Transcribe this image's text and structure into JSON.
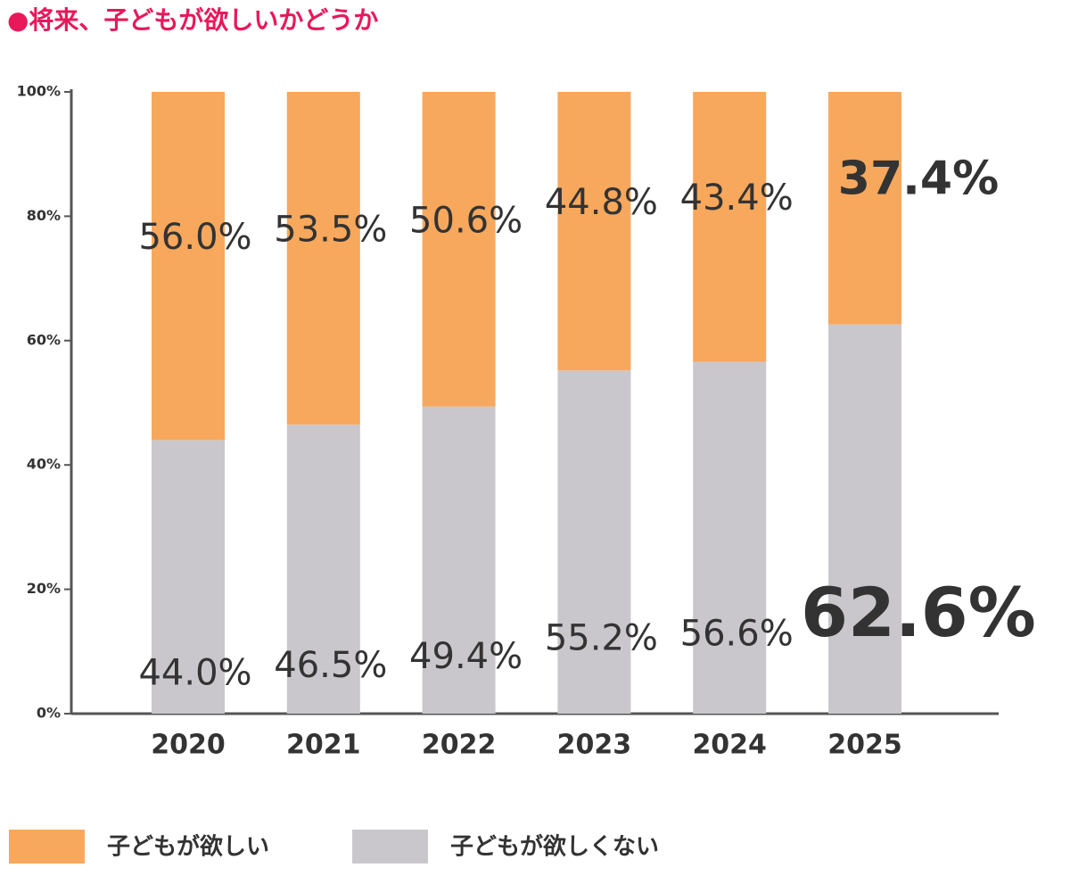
{
  "chart_data": {
    "type": "stacked_bar",
    "title": "●将来、子どもが欲しいかどうか",
    "categories": [
      "2020",
      "2021",
      "2022",
      "2023",
      "2024",
      "2025"
    ],
    "series": [
      {
        "name": "子どもが欲しくない",
        "color": "#c9c7cc",
        "values": [
          44.0,
          46.5,
          49.4,
          55.2,
          56.6,
          62.6
        ],
        "value_labels": [
          "44.0%",
          "46.5%",
          "49.4%",
          "55.2%",
          "56.6%",
          "62.6%"
        ]
      },
      {
        "name": "子どもが欲しい",
        "color": "#f7a85c",
        "values": [
          56.0,
          53.5,
          50.6,
          44.8,
          43.4,
          37.4
        ],
        "value_labels": [
          "56.0%",
          "53.5%",
          "50.6%",
          "44.8%",
          "43.4%",
          "37.4%"
        ]
      }
    ],
    "ylim": [
      0,
      100
    ],
    "yticks": [
      {
        "value": 0,
        "label": "0%"
      },
      {
        "value": 20,
        "label": "20%"
      },
      {
        "value": 40,
        "label": "40%"
      },
      {
        "value": 60,
        "label": "60%"
      },
      {
        "value": 80,
        "label": "80%"
      },
      {
        "value": 100,
        "label": "100%"
      }
    ],
    "grid": false,
    "label_highlight": {
      "category": 5,
      "color": "#e8185a"
    }
  }
}
